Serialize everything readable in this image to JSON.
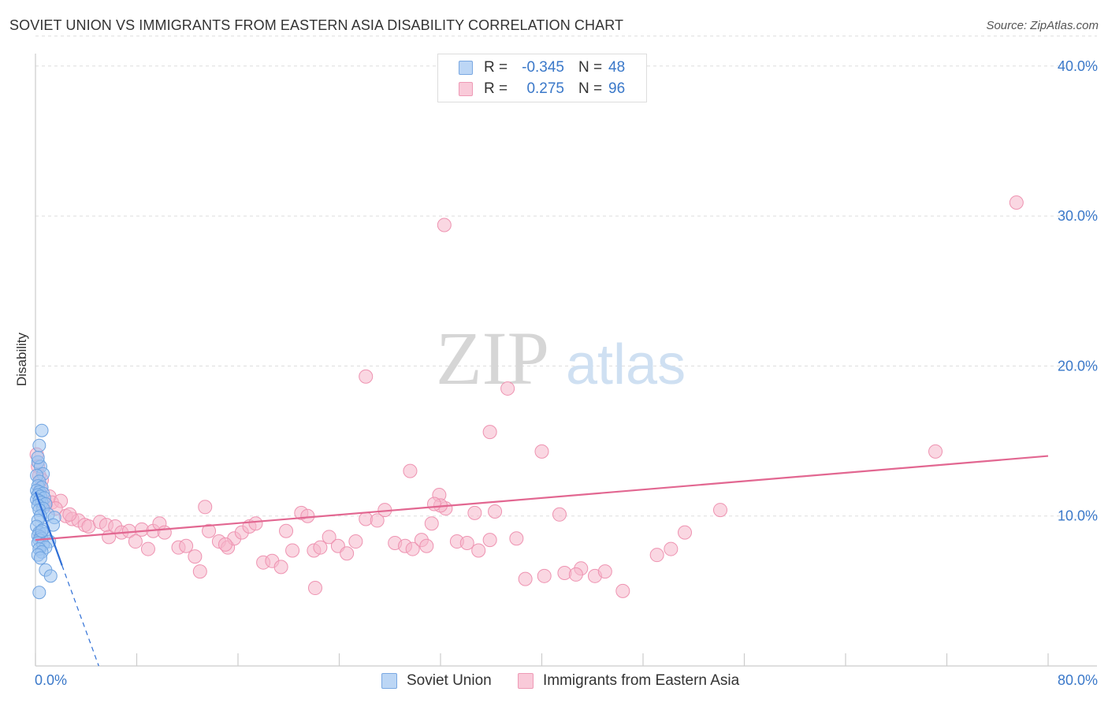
{
  "header": {
    "title": "SOVIET UNION VS IMMIGRANTS FROM EASTERN ASIA DISABILITY CORRELATION CHART",
    "source": "Source: ZipAtlas.com"
  },
  "legend_stats": {
    "rows": [
      {
        "r_label": "R =",
        "r_value": "-0.345",
        "n_label": "N =",
        "n_value": "48"
      },
      {
        "r_label": "R =",
        "r_value": "0.275",
        "n_label": "N =",
        "n_value": "96"
      }
    ]
  },
  "legend_bottom": {
    "items": [
      {
        "label": "Soviet Union"
      },
      {
        "label": "Immigrants from Eastern Asia"
      }
    ]
  },
  "watermark": {
    "part1": "ZIP",
    "part2": "atlas"
  },
  "colors": {
    "blue_fill": "#9ec5f0",
    "blue_stroke": "#6fa3e0",
    "blue_line": "#2f6fd6",
    "pink_fill": "#f6b7cb",
    "pink_stroke": "#ee93b1",
    "pink_line": "#e26791",
    "tick_label": "#3a78c9",
    "grid": "#dddddd"
  },
  "chart_data": {
    "type": "scatter",
    "title": "SOVIET UNION VS IMMIGRANTS FROM EASTERN ASIA DISABILITY CORRELATION CHART",
    "xlabel": "",
    "ylabel": "Disability",
    "xlim": [
      0,
      80
    ],
    "ylim": [
      0,
      42
    ],
    "x_tick_labels": [
      "0.0%",
      "80.0%"
    ],
    "y_ticks": [
      10,
      20,
      30,
      40
    ],
    "y_tick_labels": [
      "10.0%",
      "20.0%",
      "30.0%",
      "40.0%"
    ],
    "grid": "horizontal dashed",
    "legend_position": "bottom",
    "series": [
      {
        "name": "Soviet Union",
        "color": "#9ec5f0",
        "r": -0.345,
        "n": 48,
        "trend": {
          "x": [
            0,
            2.1
          ],
          "y": [
            11.6,
            6.7
          ],
          "dashed_to": [
            5.0,
            0.0
          ]
        },
        "points": [
          [
            0.5,
            15.7
          ],
          [
            0.3,
            14.7
          ],
          [
            0.2,
            13.6
          ],
          [
            0.4,
            13.3
          ],
          [
            0.2,
            13.9
          ],
          [
            0.6,
            12.8
          ],
          [
            0.1,
            12.7
          ],
          [
            0.3,
            12.3
          ],
          [
            0.2,
            12.0
          ],
          [
            0.5,
            11.9
          ],
          [
            0.1,
            11.7
          ],
          [
            0.3,
            11.6
          ],
          [
            0.6,
            11.5
          ],
          [
            0.2,
            11.4
          ],
          [
            0.4,
            11.3
          ],
          [
            0.7,
            11.2
          ],
          [
            0.1,
            11.1
          ],
          [
            0.3,
            11.0
          ],
          [
            0.5,
            10.9
          ],
          [
            0.8,
            10.8
          ],
          [
            0.2,
            10.7
          ],
          [
            0.6,
            10.5
          ],
          [
            0.3,
            10.4
          ],
          [
            1.0,
            10.1
          ],
          [
            0.4,
            10.0
          ],
          [
            1.5,
            9.9
          ],
          [
            0.2,
            9.7
          ],
          [
            1.4,
            9.4
          ],
          [
            0.1,
            9.3
          ],
          [
            0.6,
            9.1
          ],
          [
            0.3,
            8.9
          ],
          [
            0.7,
            8.8
          ],
          [
            0.2,
            8.7
          ],
          [
            0.4,
            8.6
          ],
          [
            0.5,
            8.5
          ],
          [
            0.3,
            8.4
          ],
          [
            1.1,
            8.3
          ],
          [
            0.2,
            8.2
          ],
          [
            0.6,
            8.1
          ],
          [
            0.8,
            7.9
          ],
          [
            0.3,
            7.8
          ],
          [
            0.5,
            7.6
          ],
          [
            0.2,
            7.4
          ],
          [
            0.4,
            7.2
          ],
          [
            0.8,
            6.4
          ],
          [
            1.2,
            6.0
          ],
          [
            0.3,
            4.9
          ],
          [
            0.5,
            9.0
          ]
        ]
      },
      {
        "name": "Immigrants from Eastern Asia",
        "color": "#f6b7cb",
        "r": 0.275,
        "n": 96,
        "trend": {
          "x": [
            0,
            80
          ],
          "y": [
            8.4,
            14.0
          ]
        },
        "points": [
          [
            0.1,
            14.1
          ],
          [
            0.2,
            13.3
          ],
          [
            0.3,
            12.7
          ],
          [
            0.5,
            12.4
          ],
          [
            0.4,
            11.8
          ],
          [
            1.1,
            11.3
          ],
          [
            1.3,
            10.9
          ],
          [
            2.0,
            11.0
          ],
          [
            1.6,
            10.5
          ],
          [
            0.8,
            10.8
          ],
          [
            2.4,
            10.0
          ],
          [
            2.9,
            9.8
          ],
          [
            3.4,
            9.7
          ],
          [
            2.7,
            10.1
          ],
          [
            3.9,
            9.4
          ],
          [
            4.2,
            9.3
          ],
          [
            5.1,
            9.6
          ],
          [
            5.6,
            9.4
          ],
          [
            5.8,
            8.6
          ],
          [
            6.3,
            9.3
          ],
          [
            6.8,
            8.9
          ],
          [
            7.4,
            9.0
          ],
          [
            7.9,
            8.3
          ],
          [
            8.4,
            9.1
          ],
          [
            8.9,
            7.8
          ],
          [
            9.3,
            9.0
          ],
          [
            9.8,
            9.5
          ],
          [
            10.2,
            8.9
          ],
          [
            11.3,
            7.9
          ],
          [
            11.9,
            8.0
          ],
          [
            12.6,
            7.3
          ],
          [
            13.0,
            6.3
          ],
          [
            13.7,
            9.0
          ],
          [
            13.4,
            10.6
          ],
          [
            14.5,
            8.3
          ],
          [
            15.2,
            7.9
          ],
          [
            15.7,
            8.5
          ],
          [
            16.3,
            8.9
          ],
          [
            16.9,
            9.3
          ],
          [
            17.4,
            9.5
          ],
          [
            18.0,
            6.9
          ],
          [
            18.7,
            7.0
          ],
          [
            19.4,
            6.6
          ],
          [
            19.8,
            9.0
          ],
          [
            20.3,
            7.7
          ],
          [
            21.0,
            10.2
          ],
          [
            21.5,
            10.0
          ],
          [
            22.0,
            7.7
          ],
          [
            22.5,
            7.9
          ],
          [
            23.2,
            8.6
          ],
          [
            23.9,
            8.0
          ],
          [
            24.6,
            7.5
          ],
          [
            25.3,
            8.3
          ],
          [
            26.1,
            9.8
          ],
          [
            27.0,
            9.7
          ],
          [
            27.6,
            10.4
          ],
          [
            28.4,
            8.2
          ],
          [
            29.2,
            8.0
          ],
          [
            29.8,
            7.8
          ],
          [
            30.5,
            8.4
          ],
          [
            31.3,
            9.5
          ],
          [
            31.9,
            11.4
          ],
          [
            32.4,
            10.5
          ],
          [
            33.3,
            8.3
          ],
          [
            34.1,
            8.2
          ],
          [
            35.0,
            7.7
          ],
          [
            22.1,
            5.2
          ],
          [
            29.6,
            13.0
          ],
          [
            26.1,
            19.3
          ],
          [
            30.9,
            8.0
          ],
          [
            35.9,
            8.4
          ],
          [
            34.7,
            10.2
          ],
          [
            32.0,
            10.7
          ],
          [
            31.5,
            10.8
          ],
          [
            38.7,
            5.8
          ],
          [
            40.0,
            14.3
          ],
          [
            35.9,
            15.6
          ],
          [
            36.3,
            10.3
          ],
          [
            37.3,
            18.5
          ],
          [
            38.0,
            8.5
          ],
          [
            40.2,
            6.0
          ],
          [
            41.4,
            10.1
          ],
          [
            41.8,
            6.2
          ],
          [
            43.1,
            6.5
          ],
          [
            44.2,
            6.0
          ],
          [
            42.7,
            6.1
          ],
          [
            46.4,
            5.0
          ],
          [
            45.0,
            6.3
          ],
          [
            49.1,
            7.4
          ],
          [
            50.2,
            7.8
          ],
          [
            51.3,
            8.9
          ],
          [
            54.1,
            10.4
          ],
          [
            71.1,
            14.3
          ],
          [
            77.5,
            30.9
          ],
          [
            32.3,
            29.4
          ],
          [
            15.0,
            8.1
          ]
        ]
      }
    ]
  }
}
